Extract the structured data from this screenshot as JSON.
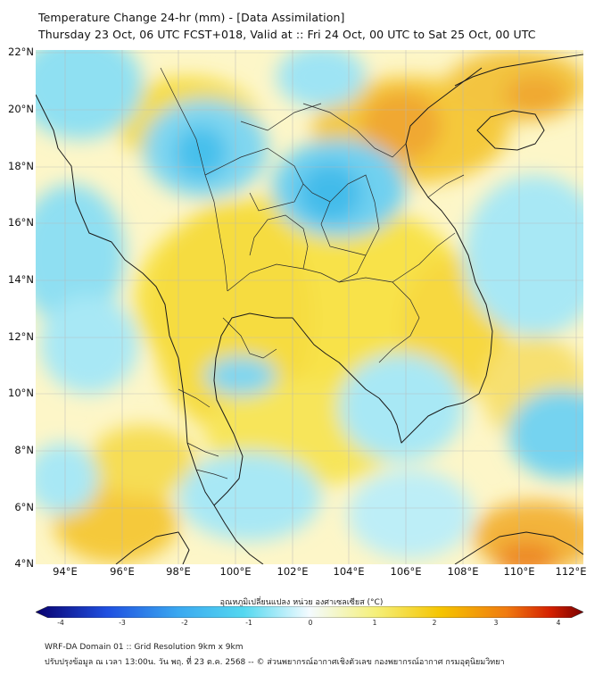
{
  "header": {
    "title": "Temperature Change 24-hr (mm) - [Data Assimilation]",
    "subtitle": "Thursday 23 Oct, 06 UTC FCST+018, Valid at :: Fri 24 Oct, 00 UTC to Sat 25 Oct, 00 UTC"
  },
  "axes": {
    "lat_labels": [
      "22°N",
      "20°N",
      "18°N",
      "16°N",
      "14°N",
      "12°N",
      "10°N",
      "8°N",
      "6°N",
      "4°N"
    ],
    "lon_labels": [
      "94°E",
      "96°E",
      "98°E",
      "100°E",
      "102°E",
      "104°E",
      "106°E",
      "108°E",
      "110°E",
      "112°E"
    ]
  },
  "colorbar": {
    "label": "อุณหภูมิเปลี่ยนแปลง หน่วย องศาเซลเซียส (°C)",
    "ticks": [
      "-4",
      "-3",
      "-2",
      "-1",
      "0",
      "1",
      "2",
      "3",
      "4"
    ],
    "colors": [
      "#08006e",
      "#1f4fe0",
      "#3aa8f0",
      "#54d8f0",
      "#f4fbff",
      "#f5f07a",
      "#f5c400",
      "#f07a10",
      "#d42000",
      "#7a0000"
    ]
  },
  "footer": {
    "line1": "WRF-DA Domain 01 :: Grid Resolution 9km x 9km",
    "line2": "ปรับปรุงข้อมูล ณ เวลา 13:00น. วัน พฤ. ที่ 23 ต.ค. 2568 -- © ส่วนพยากรณ์อากาศเชิงตัวเลข กองพยากรณ์อากาศ กรมอุตุนิยมวิทยา"
  }
}
